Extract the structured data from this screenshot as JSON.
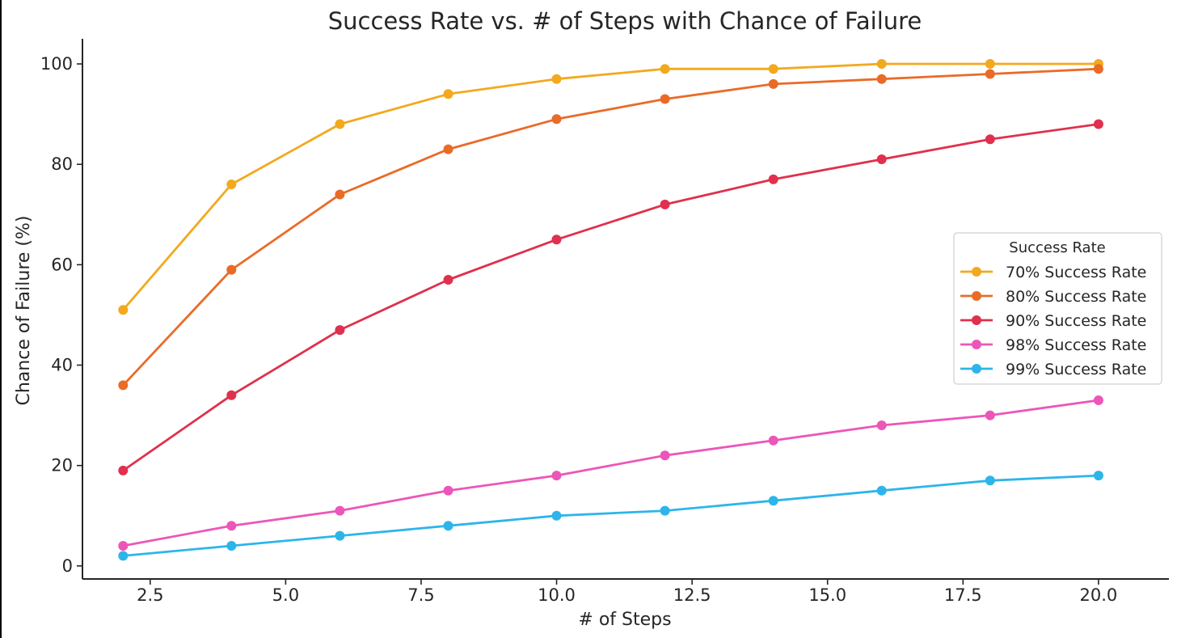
{
  "chart_data": {
    "type": "line",
    "title": "Success Rate vs. # of Steps with Chance of Failure",
    "xlabel": "# of Steps",
    "ylabel": "Chance of Failure (%)",
    "xlim": [
      1.25,
      21.3
    ],
    "ylim": [
      -2.6,
      105
    ],
    "xticks": [
      2.5,
      5.0,
      7.5,
      10.0,
      12.5,
      15.0,
      17.5,
      20.0
    ],
    "xtick_labels": [
      "2.5",
      "5.0",
      "7.5",
      "10.0",
      "12.5",
      "15.0",
      "17.5",
      "20.0"
    ],
    "yticks": [
      0,
      20,
      40,
      60,
      80,
      100
    ],
    "ytick_labels": [
      "0",
      "20",
      "40",
      "60",
      "80",
      "100"
    ],
    "grid": false,
    "legend": {
      "title": "Success Rate",
      "position": "right"
    },
    "x": [
      2,
      4,
      6,
      8,
      10,
      12,
      14,
      16,
      18,
      20
    ],
    "series": [
      {
        "name": "70% Success Rate",
        "color": "#F2A91E",
        "values": [
          51,
          76,
          88,
          94,
          97,
          99,
          99,
          100,
          100,
          100
        ]
      },
      {
        "name": "80% Success Rate",
        "color": "#E96B27",
        "values": [
          36,
          59,
          74,
          83,
          89,
          93,
          96,
          97,
          98,
          99
        ]
      },
      {
        "name": "90% Success Rate",
        "color": "#E0304D",
        "values": [
          19,
          34,
          47,
          57,
          65,
          72,
          77,
          81,
          85,
          88
        ]
      },
      {
        "name": "98% Success Rate",
        "color": "#EC56B9",
        "values": [
          4,
          8,
          11,
          15,
          18,
          22,
          25,
          28,
          30,
          33
        ]
      },
      {
        "name": "99% Success Rate",
        "color": "#2DB5EA",
        "values": [
          2,
          4,
          6,
          8,
          10,
          11,
          13,
          15,
          17,
          18
        ]
      }
    ]
  }
}
